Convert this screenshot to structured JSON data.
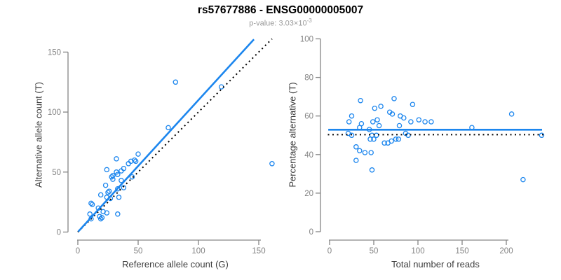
{
  "header": {
    "title": "rs57677886 - ENSG00000005007",
    "subtitle_prefix": "p-value: 3.03×10",
    "subtitle_exponent": "-3"
  },
  "colors": {
    "accent_blue": "#1C86EE",
    "dotted_black": "#000000",
    "axis_gray": "#868686",
    "tick_label_gray": "#828282",
    "axis_title_dark": "#3d3d3d",
    "subtitle_gray": "#9a9a9a",
    "background": "#ffffff"
  },
  "chart_data": [
    {
      "name": "allele-counts",
      "type": "scatter",
      "title": "",
      "xlabel": "Reference allele count (G)",
      "ylabel": "Alternative allele count (T)",
      "xlim": [
        0,
        162
      ],
      "ylim": [
        0,
        161
      ],
      "xticks": [
        0,
        50,
        100,
        150
      ],
      "yticks": [
        0,
        50,
        100,
        150
      ],
      "grid": false,
      "marker": "open-circle",
      "points": [
        [
          11,
          11
        ],
        [
          19,
          11
        ],
        [
          20,
          12
        ],
        [
          18,
          13
        ],
        [
          10,
          15
        ],
        [
          33,
          15
        ],
        [
          24,
          16
        ],
        [
          21,
          17
        ],
        [
          17,
          20
        ],
        [
          12,
          23
        ],
        [
          11,
          24
        ],
        [
          27,
          28
        ],
        [
          24,
          29
        ],
        [
          34,
          29
        ],
        [
          19,
          31
        ],
        [
          25,
          33
        ],
        [
          26,
          34
        ],
        [
          33,
          36
        ],
        [
          38,
          37
        ],
        [
          23,
          39
        ],
        [
          36,
          43
        ],
        [
          29,
          44
        ],
        [
          28,
          46
        ],
        [
          45,
          46
        ],
        [
          29,
          47
        ],
        [
          33,
          48
        ],
        [
          32,
          50
        ],
        [
          36,
          51
        ],
        [
          24,
          52
        ],
        [
          38,
          53
        ],
        [
          42,
          57
        ],
        [
          44,
          59
        ],
        [
          48,
          59
        ],
        [
          47,
          60
        ],
        [
          32,
          61
        ],
        [
          50,
          65
        ],
        [
          75,
          87
        ],
        [
          81,
          125
        ],
        [
          119,
          121
        ],
        [
          161,
          57
        ]
      ],
      "lines": [
        {
          "name": "identity-line",
          "type": "slope",
          "slope": 1.0,
          "intercept": 0,
          "x_range": [
            0,
            161
          ],
          "style": "dotted",
          "color": "#000000",
          "width": 2
        },
        {
          "name": "regression-line",
          "type": "slope",
          "slope": 1.1,
          "intercept": 0,
          "x_range": [
            0.3,
            146
          ],
          "style": "solid",
          "color": "#1C86EE",
          "width": 2.6
        }
      ]
    },
    {
      "name": "percentage-vs-reads",
      "type": "scatter",
      "title": "",
      "xlabel": "Total number of reads",
      "ylabel": "Percentage alternative (T)",
      "xlim": [
        0,
        242
      ],
      "ylim": [
        0,
        100
      ],
      "xticks": [
        0,
        50,
        100,
        150,
        200
      ],
      "yticks": [
        0,
        20,
        40,
        60,
        80,
        100
      ],
      "grid": false,
      "marker": "open-circle",
      "points": [
        [
          21,
          51
        ],
        [
          22,
          57
        ],
        [
          25,
          50
        ],
        [
          25,
          60
        ],
        [
          30,
          37
        ],
        [
          30,
          44
        ],
        [
          34,
          42
        ],
        [
          34,
          54
        ],
        [
          35,
          68
        ],
        [
          36,
          56
        ],
        [
          40,
          41
        ],
        [
          45,
          53
        ],
        [
          46,
          48
        ],
        [
          47,
          41
        ],
        [
          48,
          32
        ],
        [
          48,
          50
        ],
        [
          49,
          57
        ],
        [
          50,
          48
        ],
        [
          51,
          64
        ],
        [
          53,
          50
        ],
        [
          54,
          58
        ],
        [
          56,
          55
        ],
        [
          58,
          65
        ],
        [
          62,
          46
        ],
        [
          66,
          46
        ],
        [
          68,
          62
        ],
        [
          70,
          47
        ],
        [
          71,
          61
        ],
        [
          73,
          69
        ],
        [
          75,
          48
        ],
        [
          78,
          48
        ],
        [
          79,
          55
        ],
        [
          80,
          60
        ],
        [
          84,
          59
        ],
        [
          86,
          51
        ],
        [
          89,
          50
        ],
        [
          92,
          57
        ],
        [
          94,
          66
        ],
        [
          101,
          58
        ],
        [
          108,
          57
        ],
        [
          115,
          57
        ],
        [
          161,
          54
        ],
        [
          206,
          61
        ],
        [
          219,
          27
        ],
        [
          240,
          50
        ]
      ],
      "lines": [
        {
          "name": "null-line",
          "type": "horizontal",
          "y": 50.3,
          "x_range": [
            -2,
            242
          ],
          "style": "dotted",
          "color": "#000000",
          "width": 2
        },
        {
          "name": "fitted-line",
          "type": "horizontal",
          "y": 52.9,
          "x_range": [
            -1.5,
            240.5
          ],
          "style": "solid",
          "color": "#1C86EE",
          "width": 2.6
        }
      ]
    }
  ]
}
